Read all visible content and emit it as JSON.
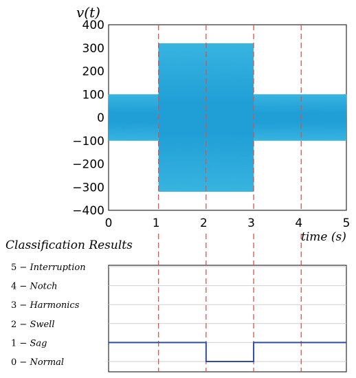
{
  "chart_data": [
    {
      "type": "line",
      "title": "",
      "ylabel": "v(t)",
      "xlabel": "time (s)",
      "xlim": [
        0,
        5
      ],
      "ylim": [
        -400,
        400
      ],
      "xticks": [
        0,
        1,
        2,
        3,
        4,
        5
      ],
      "yticks": [
        400,
        300,
        200,
        100,
        0,
        -100,
        -200,
        -300,
        -400
      ],
      "grid": false,
      "series": [
        {
          "color": "#1f9fd6",
          "style": "sinusoid envelope",
          "segments": [
            {
              "x_start": 0,
              "x_end": 1.05,
              "amplitude": 100
            },
            {
              "x_start": 1.05,
              "x_end": 3.05,
              "amplitude": 320
            },
            {
              "x_start": 3.05,
              "x_end": 5,
              "amplitude": 100
            }
          ]
        }
      ],
      "event_boundaries": [
        1.05,
        2.05,
        3.05,
        4.05
      ],
      "boundary_color": "#d9534f"
    },
    {
      "type": "line",
      "title": "Classification Results",
      "ylim": [
        0,
        5
      ],
      "xlim": [
        0,
        5
      ],
      "categories_y": [
        {
          "num": "5",
          "dash": " − ",
          "name": "Interruption"
        },
        {
          "num": "4",
          "dash": " − ",
          "name": "Notch"
        },
        {
          "num": "3",
          "dash": " − ",
          "name": "Harmonics"
        },
        {
          "num": "2",
          "dash": " − ",
          "name": "Swell"
        },
        {
          "num": "1",
          "dash": " − ",
          "name": "Sag"
        },
        {
          "num": "0",
          "dash": " − ",
          "name": "Normal"
        }
      ],
      "series": [
        {
          "color": "#2b4fa8",
          "x": [
            0,
            2.05,
            2.05,
            3.05,
            3.05,
            5
          ],
          "y": [
            1,
            1,
            0,
            0,
            1,
            1
          ]
        }
      ],
      "event_boundaries": [
        1.05,
        2.05,
        3.05,
        4.05
      ],
      "boundary_color": "#d9534f"
    }
  ]
}
